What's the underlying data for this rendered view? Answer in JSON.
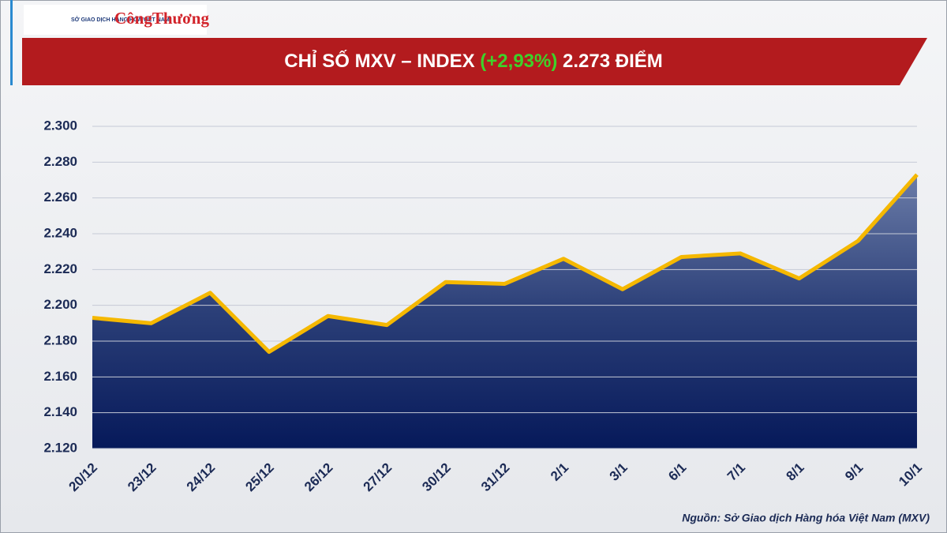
{
  "chart_data": {
    "type": "area-line",
    "logos": [
      "SỞ GIAO DỊCH HÀNG HÓA VIỆT NAM",
      "CôngThương"
    ],
    "title": "CHỈ SỐ MXV – INDEX",
    "change": "(+2,93%)",
    "last_value": "2.273 ĐIỂM",
    "categories": [
      "20/12",
      "23/12",
      "24/12",
      "25/12",
      "26/12",
      "27/12",
      "30/12",
      "31/12",
      "2/1",
      "3/1",
      "6/1",
      "7/1",
      "8/1",
      "9/1",
      "10/1"
    ],
    "values": [
      2193,
      2190,
      2207,
      2174,
      2194,
      2189,
      2213,
      2212,
      2226,
      2209,
      2227,
      2229,
      2215,
      2236,
      2273
    ],
    "color": "#f5b800",
    "ylim": [
      2120,
      2300
    ],
    "yticks": [
      {
        "value": 2120,
        "label": "2.120"
      },
      {
        "value": 2140,
        "label": "2.140"
      },
      {
        "value": 2160,
        "label": "2.160"
      },
      {
        "value": 2180,
        "label": "2.180"
      },
      {
        "value": 2200,
        "label": "2.200"
      },
      {
        "value": 2220,
        "label": "2.220"
      },
      {
        "value": 2240,
        "label": "2.240"
      },
      {
        "value": 2260,
        "label": "2.260"
      },
      {
        "value": 2280,
        "label": "2.280"
      },
      {
        "value": 2300,
        "label": "2.300"
      }
    ],
    "grid": true,
    "source": "Nguồn: Sở Giao dịch Hàng hóa Việt Nam (MXV)"
  }
}
